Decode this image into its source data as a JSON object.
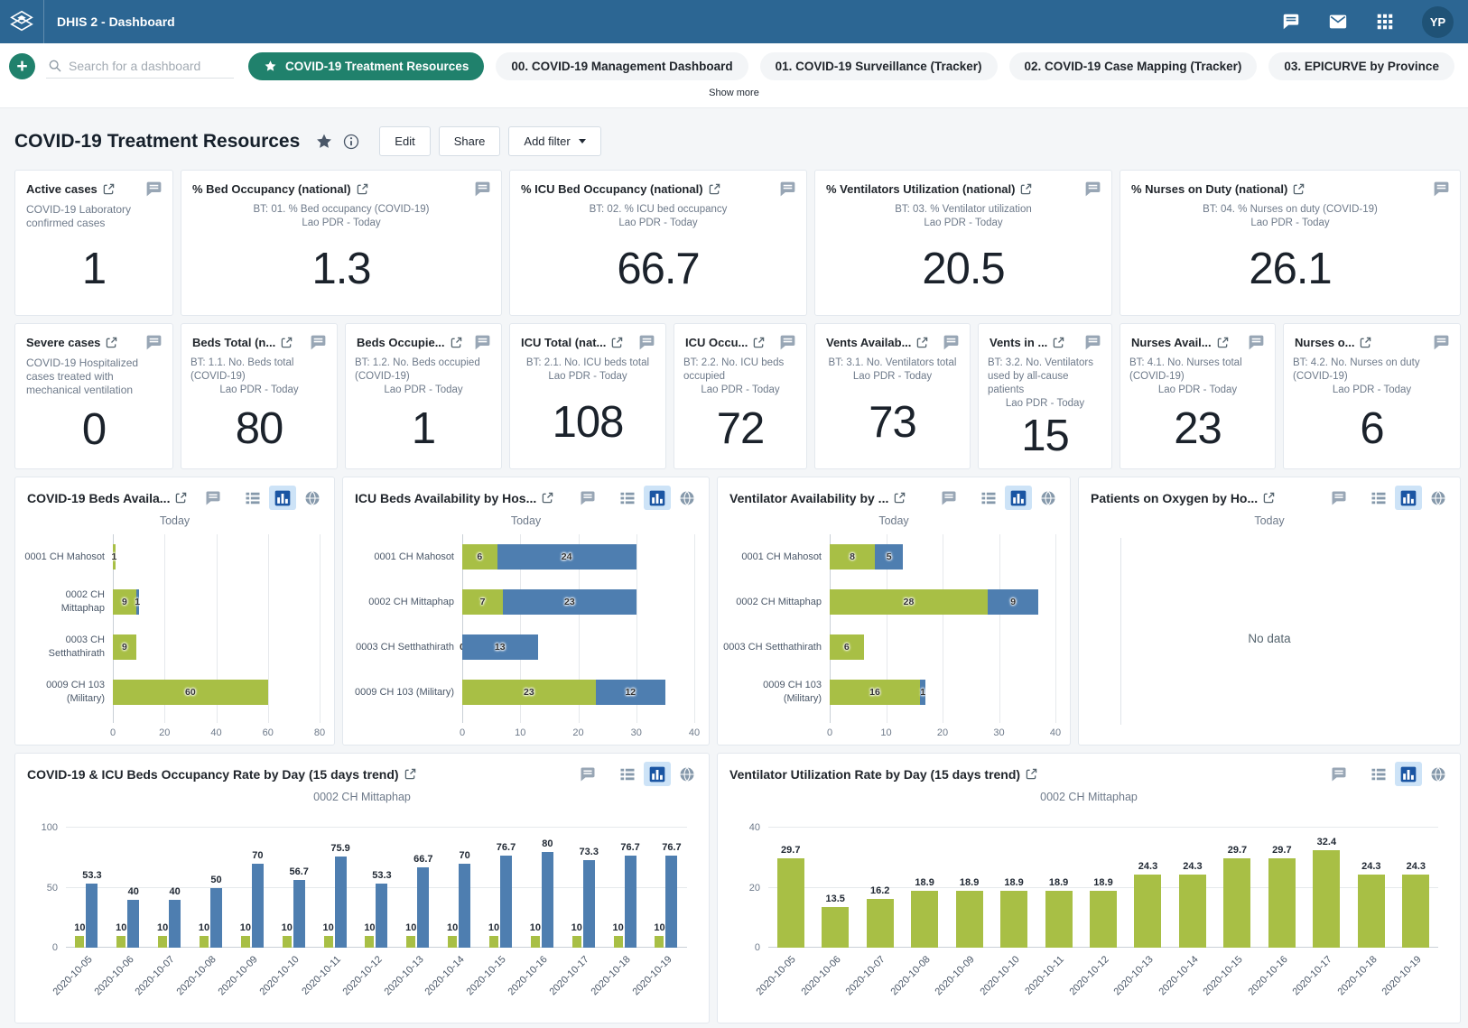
{
  "colors": {
    "header_bg": "#2c6693",
    "accent_green": "#20816c",
    "bar_green": "#a8bf45",
    "bar_blue": "#4e7eb0",
    "active_icon_bg": "#cde3f7",
    "active_icon_fg": "#1a55a3"
  },
  "header": {
    "title": "DHIS 2 - Dashboard",
    "avatar_initials": "YP"
  },
  "nav": {
    "search_placeholder": "Search for a dashboard",
    "chips": [
      {
        "label": "COVID-19 Treatment Resources",
        "selected": true
      },
      {
        "label": "00. COVID-19 Management Dashboard",
        "selected": false
      },
      {
        "label": "01. COVID-19 Surveillance (Tracker)",
        "selected": false
      },
      {
        "label": "02. COVID-19 Case Mapping (Tracker)",
        "selected": false
      },
      {
        "label": "03. EPICURVE by Province",
        "selected": false
      }
    ],
    "show_more": "Show more"
  },
  "page": {
    "title": "COVID-19 Treatment Resources",
    "edit_label": "Edit",
    "share_label": "Share",
    "add_filter_label": "Add filter"
  },
  "value_cards": {
    "row1": [
      {
        "title": "Active cases",
        "description": "COVID-19 Laboratory confirmed cases",
        "value": "1"
      },
      {
        "title": "% Bed Occupancy (national)",
        "subtitle": "BT: 01. % Bed occupancy (COVID-19)",
        "period": "Lao PDR - Today",
        "value": "1.3"
      },
      {
        "title": "% ICU Bed Occupancy (national)",
        "subtitle": "BT: 02. % ICU bed occupancy",
        "period": "Lao PDR - Today",
        "value": "66.7"
      },
      {
        "title": "% Ventilators Utilization (national)",
        "subtitle": "BT: 03. % Ventilator utilization",
        "period": "Lao PDR - Today",
        "value": "20.5"
      },
      {
        "title": "% Nurses on Duty (national)",
        "subtitle": "BT: 04. % Nurses on duty (COVID-19)",
        "period": "Lao PDR - Today",
        "value": "26.1"
      }
    ],
    "row2": [
      {
        "title": "Severe cases",
        "description": "COVID-19 Hospitalized cases treated with mechanical ventilation",
        "value": "0"
      },
      {
        "title": "Beds Total (n...",
        "subtitle": "BT: 1.1. No. Beds total (COVID-19)",
        "period": "Lao PDR - Today",
        "value": "80"
      },
      {
        "title": "Beds Occupie...",
        "subtitle": "BT: 1.2. No. Beds occupied (COVID-19)",
        "period": "Lao PDR - Today",
        "value": "1"
      },
      {
        "title": "ICU Total (nat...",
        "subtitle": "BT: 2.1. No. ICU beds total",
        "period": "Lao PDR - Today",
        "value": "108"
      },
      {
        "title": "ICU Occu...",
        "subtitle": "BT: 2.2. No. ICU beds occupied",
        "period": "Lao PDR - Today",
        "value": "72"
      },
      {
        "title": "Vents Availab...",
        "subtitle": "BT: 3.1. No. Ventilators total",
        "period": "Lao PDR - Today",
        "value": "73"
      },
      {
        "title": "Vents in ...",
        "subtitle": "BT: 3.2. No. Ventilators used by all-cause patients",
        "period": "Lao PDR - Today",
        "value": "15"
      },
      {
        "title": "Nurses Avail...",
        "subtitle": "BT: 4.1. No. Nurses total (COVID-19)",
        "period": "Lao PDR - Today",
        "value": "23"
      },
      {
        "title": "Nurses o...",
        "subtitle": "BT: 4.2. No. Nurses on duty (COVID-19)",
        "period": "Lao PDR - Today",
        "value": "6"
      }
    ]
  },
  "chart_data": [
    {
      "panel": "covid19-beds-availability",
      "title": "COVID-19 Beds Availa...",
      "subtitle": "Today",
      "type": "bar-horizontal-stacked",
      "categories": [
        "0001 CH Mahosot",
        "0002 CH Mittaphap",
        "0003 CH Setthathirath",
        "0009 CH 103 (Military)"
      ],
      "series": [
        {
          "color": "green",
          "values": [
            1,
            9,
            9,
            60
          ]
        },
        {
          "color": "blue",
          "values": [
            null,
            1,
            null,
            null
          ]
        }
      ],
      "xticks": [
        0,
        20,
        40,
        60,
        80
      ],
      "xmax": 80
    },
    {
      "panel": "icu-beds-availability",
      "title": "ICU Beds Availability by Hos...",
      "subtitle": "Today",
      "type": "bar-horizontal-stacked",
      "categories": [
        "0001 CH Mahosot",
        "0002 CH Mittaphap",
        "0003 CH Setthathirath",
        "0009 CH 103 (Military)"
      ],
      "series": [
        {
          "color": "green",
          "values": [
            6,
            7,
            0,
            23
          ]
        },
        {
          "color": "blue",
          "values": [
            24,
            23,
            13,
            12
          ]
        }
      ],
      "xticks": [
        0,
        10,
        20,
        30,
        40
      ],
      "xmax": 40
    },
    {
      "panel": "ventilator-availability",
      "title": "Ventilator Availability by ...",
      "subtitle": "Today",
      "type": "bar-horizontal-stacked",
      "categories": [
        "0001 CH Mahosot",
        "0002 CH Mittaphap",
        "0003 CH Setthathirath",
        "0009 CH 103 (Military)"
      ],
      "series": [
        {
          "color": "green",
          "values": [
            8,
            28,
            6,
            16
          ]
        },
        {
          "color": "blue",
          "values": [
            5,
            9,
            null,
            1
          ]
        }
      ],
      "xticks": [
        0,
        10,
        20,
        30,
        40
      ],
      "xmax": 40
    },
    {
      "panel": "patients-on-oxygen",
      "title": "Patients on Oxygen by Ho...",
      "subtitle": "Today",
      "type": "no-data",
      "message": "No data"
    },
    {
      "panel": "beds-occupancy-rate-by-day",
      "title": "COVID-19 & ICU Beds Occupancy Rate by Day (15 days trend)",
      "subtitle": "0002 CH Mittaphap",
      "type": "bar-vertical-grouped",
      "categories": [
        "2020-10-05",
        "2020-10-06",
        "2020-10-07",
        "2020-10-08",
        "2020-10-09",
        "2020-10-10",
        "2020-10-11",
        "2020-10-12",
        "2020-10-13",
        "2020-10-14",
        "2020-10-15",
        "2020-10-16",
        "2020-10-17",
        "2020-10-18",
        "2020-10-19"
      ],
      "series": [
        {
          "color": "green",
          "values": [
            10,
            10,
            10,
            10,
            10,
            10,
            10,
            10,
            10,
            10,
            10,
            10,
            10,
            10,
            10
          ]
        },
        {
          "color": "blue",
          "values": [
            53.3,
            40,
            40,
            50,
            70,
            56.7,
            75.9,
            53.3,
            66.7,
            70,
            76.7,
            80,
            73.3,
            76.7,
            76.7
          ]
        }
      ],
      "yticks": [
        0,
        50,
        100
      ],
      "ymax": 100
    },
    {
      "panel": "ventilator-utilization-rate-by-day",
      "title": "Ventilator Utilization Rate by Day (15 days trend)",
      "subtitle": "0002 CH Mittaphap",
      "type": "bar-vertical",
      "categories": [
        "2020-10-05",
        "2020-10-06",
        "2020-10-07",
        "2020-10-08",
        "2020-10-09",
        "2020-10-10",
        "2020-10-11",
        "2020-10-12",
        "2020-10-13",
        "2020-10-14",
        "2020-10-15",
        "2020-10-16",
        "2020-10-17",
        "2020-10-18",
        "2020-10-19"
      ],
      "series": [
        {
          "color": "green",
          "values": [
            29.7,
            13.5,
            16.2,
            18.9,
            18.9,
            18.9,
            18.9,
            18.9,
            24.3,
            24.3,
            29.7,
            29.7,
            32.4,
            24.3,
            24.3
          ]
        }
      ],
      "yticks": [
        0,
        20,
        40
      ],
      "ymax": 40
    }
  ]
}
